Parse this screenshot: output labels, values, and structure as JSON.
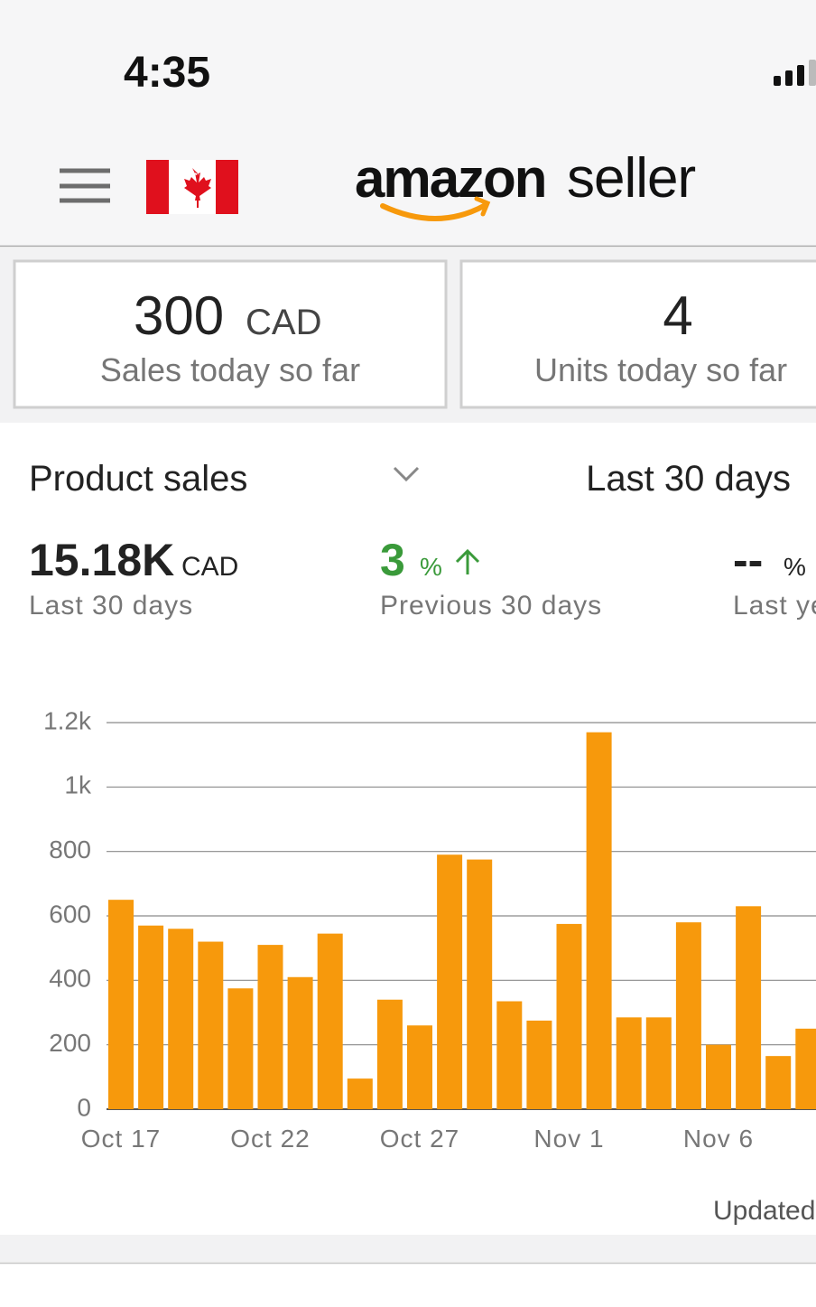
{
  "status_bar": {
    "time": "4:35"
  },
  "header": {
    "logo_bold": "amazon",
    "logo_light": "seller"
  },
  "cards": [
    {
      "value": "300",
      "unit": "CAD",
      "label": "Sales today so far"
    },
    {
      "value": "4",
      "label": "Units today so far"
    }
  ],
  "summary": {
    "metric": "Product sales",
    "period": "Last 30 days",
    "total": {
      "value": "15.18K",
      "unit": "CAD",
      "label": "Last 30 days"
    },
    "change": {
      "value": "3",
      "unit": "%",
      "label": "Previous 30 days"
    },
    "yoy": {
      "value": "--",
      "unit": "%",
      "label": "Last year"
    }
  },
  "chart_data": {
    "type": "bar",
    "categories": [
      "Oct 17",
      null,
      null,
      null,
      null,
      "Oct 22",
      null,
      null,
      null,
      null,
      "Oct 27",
      null,
      null,
      null,
      null,
      "Nov 1",
      null,
      null,
      null,
      null,
      "Nov 6",
      null,
      null,
      null
    ],
    "values": [
      650,
      570,
      560,
      520,
      375,
      510,
      410,
      545,
      95,
      340,
      260,
      790,
      775,
      335,
      275,
      575,
      1170,
      285,
      285,
      580,
      200,
      630,
      165,
      250
    ],
    "color": "#f7990c",
    "ylim": [
      0,
      1200
    ],
    "yticks": [
      0,
      200,
      400,
      600,
      800,
      {
        "value": 1000,
        "label": "1k"
      },
      {
        "value": 1200,
        "label": "1.2k"
      }
    ],
    "grid": true
  },
  "footer": {
    "updated": "Updated"
  }
}
